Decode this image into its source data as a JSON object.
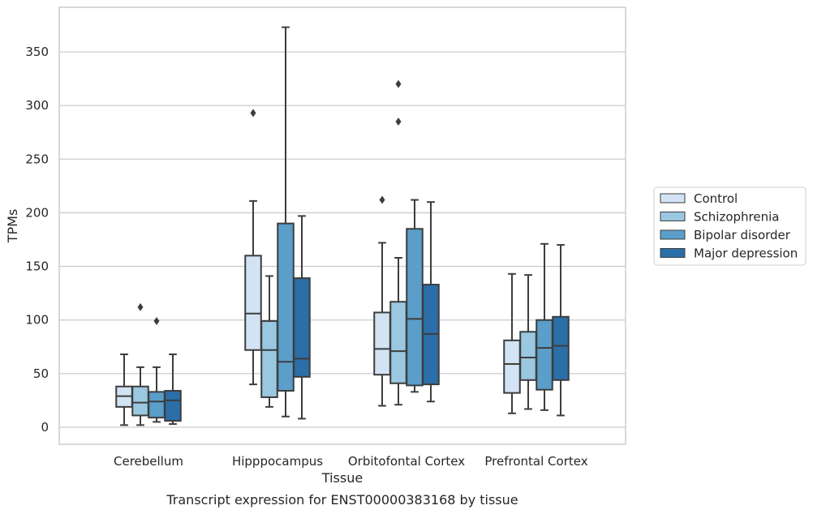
{
  "caption": "Transcript expression for ENST00000383168 by tissue",
  "chart_data": {
    "type": "box",
    "xlabel": "Tissue",
    "ylabel": "TPMs",
    "ylim": [
      -15,
      390
    ],
    "yticks": [
      0,
      50,
      100,
      150,
      200,
      250,
      300,
      350
    ],
    "grid": "horizontal",
    "legend_position": "right",
    "categories": [
      "Cerebellum",
      "Hipppocampus",
      "Orbitofontal Cortex",
      "Prefrontal Cortex"
    ],
    "series": [
      {
        "name": "Control",
        "color": "#d2e3f3",
        "boxes": [
          {
            "whislo": 2,
            "q1": 19,
            "median": 29,
            "q3": 38,
            "whishi": 68,
            "fliers": []
          },
          {
            "whislo": 40,
            "q1": 72,
            "median": 106,
            "q3": 160,
            "whishi": 211,
            "fliers": [
              293
            ]
          },
          {
            "whislo": 20,
            "q1": 49,
            "median": 73,
            "q3": 107,
            "whishi": 172,
            "fliers": [
              212
            ]
          },
          {
            "whislo": 13,
            "q1": 32,
            "median": 59,
            "q3": 81,
            "whishi": 143,
            "fliers": []
          }
        ]
      },
      {
        "name": "Schizophrenia",
        "color": "#9ac8e0",
        "boxes": [
          {
            "whislo": 2,
            "q1": 11,
            "median": 23,
            "q3": 38,
            "whishi": 56,
            "fliers": [
              112
            ]
          },
          {
            "whislo": 19,
            "q1": 28,
            "median": 72,
            "q3": 99,
            "whishi": 141,
            "fliers": []
          },
          {
            "whislo": 21,
            "q1": 41,
            "median": 71,
            "q3": 117,
            "whishi": 158,
            "fliers": [
              285,
              320
            ]
          },
          {
            "whislo": 17,
            "q1": 44,
            "median": 65,
            "q3": 89,
            "whishi": 142,
            "fliers": []
          }
        ]
      },
      {
        "name": "Bipolar disorder",
        "color": "#5a9ec9",
        "boxes": [
          {
            "whislo": 5,
            "q1": 9,
            "median": 24,
            "q3": 33,
            "whishi": 56,
            "fliers": [
              99
            ]
          },
          {
            "whislo": 10,
            "q1": 34,
            "median": 61,
            "q3": 190,
            "whishi": 373,
            "fliers": []
          },
          {
            "whislo": 33,
            "q1": 39,
            "median": 101,
            "q3": 185,
            "whishi": 212,
            "fliers": []
          },
          {
            "whislo": 16,
            "q1": 35,
            "median": 74,
            "q3": 100,
            "whishi": 171,
            "fliers": []
          }
        ]
      },
      {
        "name": "Major depression",
        "color": "#2b6ea8",
        "boxes": [
          {
            "whislo": 3,
            "q1": 6,
            "median": 25,
            "q3": 34,
            "whishi": 68,
            "fliers": []
          },
          {
            "whislo": 8,
            "q1": 47,
            "median": 64,
            "q3": 139,
            "whishi": 197,
            "fliers": []
          },
          {
            "whislo": 24,
            "q1": 40,
            "median": 87,
            "q3": 133,
            "whishi": 210,
            "fliers": []
          },
          {
            "whislo": 11,
            "q1": 44,
            "median": 76,
            "q3": 103,
            "whishi": 170,
            "fliers": []
          }
        ]
      }
    ]
  }
}
